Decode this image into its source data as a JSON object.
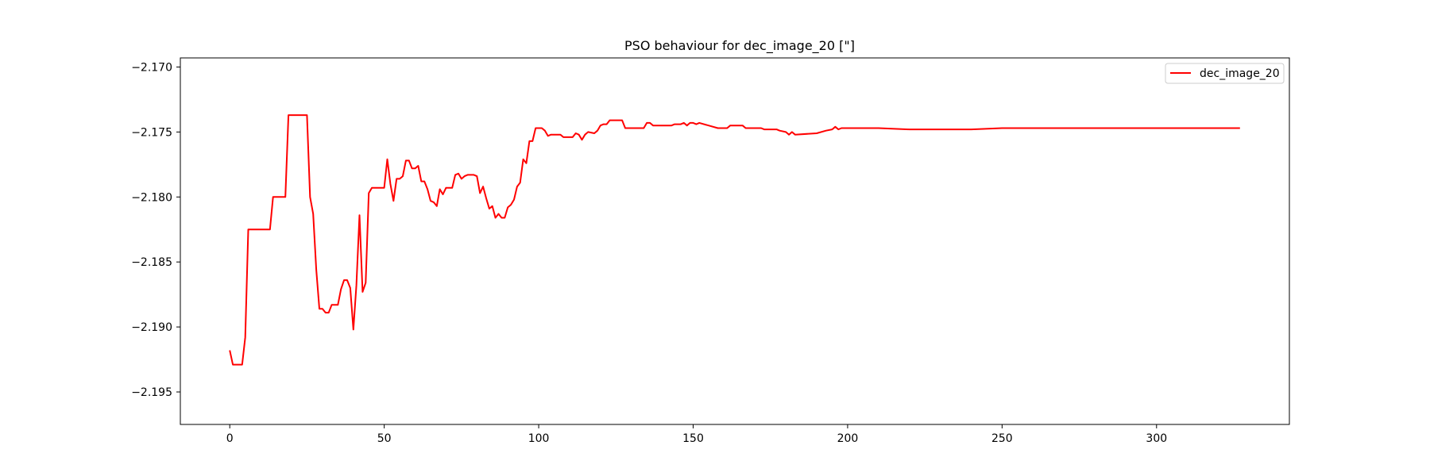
{
  "chart_data": {
    "type": "line",
    "title": "PSO behaviour for dec_image_20 [\"]",
    "xlabel": "",
    "ylabel": "",
    "xlim": [
      -16,
      343
    ],
    "ylim": [
      -2.1975,
      -2.1693
    ],
    "xticks": [
      0,
      50,
      100,
      150,
      200,
      250,
      300
    ],
    "xtick_labels": [
      "0",
      "50",
      "100",
      "150",
      "200",
      "250",
      "300"
    ],
    "yticks": [
      -2.17,
      -2.175,
      -2.18,
      -2.185,
      -2.19,
      -2.195
    ],
    "ytick_labels": [
      "−2.170",
      "−2.175",
      "−2.180",
      "−2.185",
      "−2.190",
      "−2.195"
    ],
    "grid": false,
    "legend_position": "top-right",
    "series": [
      {
        "name": "dec_image_20",
        "color": "#ff0000",
        "points": [
          [
            0,
            -2.1918
          ],
          [
            1,
            -2.1929
          ],
          [
            2,
            -2.1929
          ],
          [
            3,
            -2.1929
          ],
          [
            4,
            -2.1929
          ],
          [
            5,
            -2.1908
          ],
          [
            6,
            -2.1825
          ],
          [
            7,
            -2.1825
          ],
          [
            10,
            -2.1825
          ],
          [
            13,
            -2.1825
          ],
          [
            14,
            -2.18
          ],
          [
            16,
            -2.18
          ],
          [
            18,
            -2.18
          ],
          [
            19,
            -2.1737
          ],
          [
            22,
            -2.1737
          ],
          [
            25,
            -2.1737
          ],
          [
            26,
            -2.18
          ],
          [
            27,
            -2.1813
          ],
          [
            28,
            -2.1856
          ],
          [
            29,
            -2.1886
          ],
          [
            30,
            -2.1886
          ],
          [
            31,
            -2.1889
          ],
          [
            32,
            -2.1889
          ],
          [
            33,
            -2.1883
          ],
          [
            35,
            -2.1883
          ],
          [
            36,
            -2.1871
          ],
          [
            37,
            -2.1864
          ],
          [
            38,
            -2.1864
          ],
          [
            39,
            -2.187
          ],
          [
            40,
            -2.1902
          ],
          [
            41,
            -2.1868
          ],
          [
            42,
            -2.1814
          ],
          [
            43,
            -2.1873
          ],
          [
            44,
            -2.1866
          ],
          [
            45,
            -2.1797
          ],
          [
            46,
            -2.1793
          ],
          [
            47,
            -2.1793
          ],
          [
            50,
            -2.1793
          ],
          [
            51,
            -2.1771
          ],
          [
            52,
            -2.179
          ],
          [
            53,
            -2.1803
          ],
          [
            54,
            -2.1786
          ],
          [
            55,
            -2.1786
          ],
          [
            56,
            -2.1784
          ],
          [
            57,
            -2.1772
          ],
          [
            58,
            -2.1772
          ],
          [
            59,
            -2.1778
          ],
          [
            60,
            -2.1778
          ],
          [
            61,
            -2.1776
          ],
          [
            62,
            -2.1788
          ],
          [
            63,
            -2.1788
          ],
          [
            64,
            -2.1794
          ],
          [
            65,
            -2.1803
          ],
          [
            66,
            -2.1804
          ],
          [
            67,
            -2.1807
          ],
          [
            68,
            -2.1794
          ],
          [
            69,
            -2.1798
          ],
          [
            70,
            -2.1793
          ],
          [
            72,
            -2.1793
          ],
          [
            73,
            -2.1783
          ],
          [
            74,
            -2.1782
          ],
          [
            75,
            -2.1786
          ],
          [
            76,
            -2.1784
          ],
          [
            77,
            -2.1783
          ],
          [
            79,
            -2.1783
          ],
          [
            80,
            -2.1784
          ],
          [
            81,
            -2.1797
          ],
          [
            82,
            -2.1792
          ],
          [
            83,
            -2.1801
          ],
          [
            84,
            -2.1809
          ],
          [
            85,
            -2.1807
          ],
          [
            86,
            -2.1816
          ],
          [
            87,
            -2.1813
          ],
          [
            88,
            -2.1816
          ],
          [
            89,
            -2.1816
          ],
          [
            90,
            -2.1808
          ],
          [
            91,
            -2.1806
          ],
          [
            92,
            -2.1802
          ],
          [
            93,
            -2.1792
          ],
          [
            94,
            -2.1789
          ],
          [
            95,
            -2.1771
          ],
          [
            96,
            -2.1774
          ],
          [
            97,
            -2.1757
          ],
          [
            98,
            -2.1757
          ],
          [
            99,
            -2.1747
          ],
          [
            101,
            -2.1747
          ],
          [
            102,
            -2.1749
          ],
          [
            103,
            -2.1753
          ],
          [
            104,
            -2.1752
          ],
          [
            107,
            -2.1752
          ],
          [
            108,
            -2.1754
          ],
          [
            111,
            -2.1754
          ],
          [
            112,
            -2.1751
          ],
          [
            113,
            -2.1752
          ],
          [
            114,
            -2.1756
          ],
          [
            115,
            -2.1752
          ],
          [
            116,
            -2.175
          ],
          [
            118,
            -2.1751
          ],
          [
            119,
            -2.1749
          ],
          [
            120,
            -2.1745
          ],
          [
            121,
            -2.1744
          ],
          [
            122,
            -2.1744
          ],
          [
            123,
            -2.1741
          ],
          [
            127,
            -2.1741
          ],
          [
            128,
            -2.1747
          ],
          [
            134,
            -2.1747
          ],
          [
            135,
            -2.1743
          ],
          [
            136,
            -2.1743
          ],
          [
            137,
            -2.1745
          ],
          [
            143,
            -2.1745
          ],
          [
            144,
            -2.1744
          ],
          [
            146,
            -2.1744
          ],
          [
            147,
            -2.1743
          ],
          [
            148,
            -2.1745
          ],
          [
            149,
            -2.1743
          ],
          [
            150,
            -2.1743
          ],
          [
            151,
            -2.1744
          ],
          [
            152,
            -2.1743
          ],
          [
            155,
            -2.1745
          ],
          [
            158,
            -2.1747
          ],
          [
            161,
            -2.1747
          ],
          [
            162,
            -2.1745
          ],
          [
            166,
            -2.1745
          ],
          [
            167,
            -2.1747
          ],
          [
            172,
            -2.1747
          ],
          [
            173,
            -2.1748
          ],
          [
            177,
            -2.1748
          ],
          [
            178,
            -2.1749
          ],
          [
            180,
            -2.175
          ],
          [
            181,
            -2.1752
          ],
          [
            182,
            -2.175
          ],
          [
            183,
            -2.1752
          ],
          [
            190,
            -2.1751
          ],
          [
            193,
            -2.1749
          ],
          [
            195,
            -2.1748
          ],
          [
            196,
            -2.1746
          ],
          [
            197,
            -2.1748
          ],
          [
            198,
            -2.1747
          ],
          [
            210,
            -2.1747
          ],
          [
            220,
            -2.1748
          ],
          [
            230,
            -2.1748
          ],
          [
            240,
            -2.1748
          ],
          [
            250,
            -2.1747
          ],
          [
            260,
            -2.1747
          ],
          [
            270,
            -2.1747
          ],
          [
            280,
            -2.1747
          ],
          [
            290,
            -2.1747
          ],
          [
            300,
            -2.1747
          ],
          [
            310,
            -2.1747
          ],
          [
            320,
            -2.1747
          ],
          [
            327,
            -2.1747
          ]
        ]
      }
    ]
  }
}
